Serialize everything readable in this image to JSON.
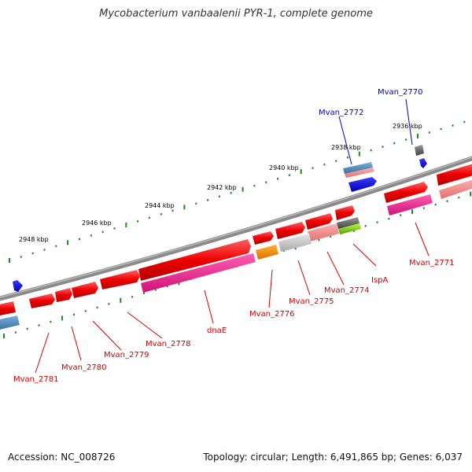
{
  "title": "Mycobacterium vanbaalenii PYR-1, complete genome",
  "accession": "Accession: NC_008726",
  "genome_stats": "Topology: circular; Length: 6,491,865 bp; Genes: 6,037",
  "kbp_ticks": [
    "2936 kbp",
    "2938 kbp",
    "2940 kbp",
    "2942 kbp",
    "2944 kbp",
    "2946 kbp",
    "2948 kbp"
  ],
  "genes": [
    {
      "name": "Mvan_2770",
      "color": "blue"
    },
    {
      "name": "Mvan_2771",
      "color": "red"
    },
    {
      "name": "Mvan_2772",
      "color": "blue"
    },
    {
      "name": "IspA",
      "color": "red"
    },
    {
      "name": "Mvan_2774",
      "color": "red"
    },
    {
      "name": "Mvan_2775",
      "color": "red"
    },
    {
      "name": "Mvan_2776",
      "color": "red"
    },
    {
      "name": "dnaE",
      "color": "red"
    },
    {
      "name": "Mvan_2778",
      "color": "red"
    },
    {
      "name": "Mvan_2779",
      "color": "red"
    },
    {
      "name": "Mvan_2780",
      "color": "red"
    },
    {
      "name": "Mvan_2781",
      "color": "red"
    }
  ],
  "colors": {
    "cds": "#ff1a1a",
    "rna": "#e8208a",
    "backbone": "#777777",
    "tick": "#1a8a1a",
    "label_red": "#d40000",
    "label_blue": "#0000c8"
  }
}
